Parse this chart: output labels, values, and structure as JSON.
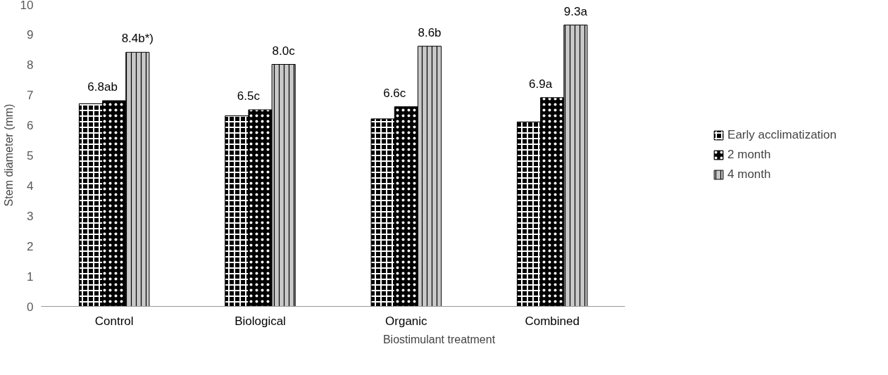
{
  "chart_data": {
    "type": "bar",
    "xlabel": "Biostimulant treatment",
    "ylabel": "Stem diameter (mm)",
    "categories": [
      "Control",
      "Biological",
      "Organic",
      "Combined"
    ],
    "series": [
      {
        "name": "Early acclimatization",
        "color": "#000000",
        "values": [
          6.7,
          6.3,
          6.2,
          6.1
        ]
      },
      {
        "name": "2 month",
        "color": "#000000",
        "values": [
          6.8,
          6.5,
          6.6,
          6.9
        ],
        "value_labels": [
          "6.8ab",
          "6.5c",
          "6.6c",
          "6.9a"
        ]
      },
      {
        "name": "4 month",
        "color": "#c8c8c8",
        "values": [
          8.4,
          8.0,
          8.6,
          9.3
        ],
        "value_labels": [
          "8.4b*)",
          "8.0c",
          "8.6b",
          "9.3a"
        ]
      }
    ],
    "ylim": [
      0,
      10
    ],
    "yticks": [
      0,
      1,
      2,
      3,
      4,
      5,
      6,
      7,
      8,
      9,
      10
    ],
    "grid": false,
    "legend": "right"
  }
}
